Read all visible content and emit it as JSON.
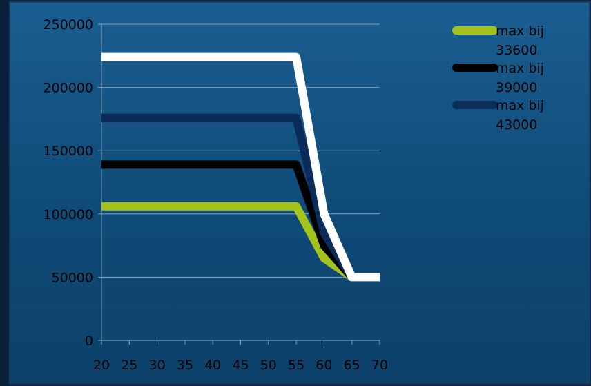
{
  "colors": {
    "plot_background": "#0f4c79",
    "gridline": "#8aa3b8",
    "text": "#000000"
  },
  "chart_data": {
    "type": "line",
    "title": "",
    "xlabel": "",
    "ylabel": "",
    "x": [
      20,
      25,
      30,
      35,
      40,
      45,
      50,
      55,
      60,
      65,
      70
    ],
    "xlim": [
      20,
      70
    ],
    "ylim": [
      0,
      250000
    ],
    "y_ticks": [
      "0",
      "50000",
      "100000",
      "150000",
      "200000",
      "250000"
    ],
    "x_ticks": [
      "20",
      "25",
      "30",
      "35",
      "40",
      "45",
      "50",
      "55",
      "60",
      "65",
      "70"
    ],
    "grid": "horizontal",
    "legend_position": "top-right",
    "series": [
      {
        "name": "max bij 33600",
        "color": "#a4c41d",
        "values": [
          106000,
          106000,
          106000,
          106000,
          106000,
          106000,
          106000,
          106000,
          65000,
          50000,
          50000
        ],
        "in_legend": true
      },
      {
        "name": "max bij 39000",
        "color": "#000000",
        "values": [
          139000,
          139000,
          139000,
          139000,
          139000,
          139000,
          139000,
          139000,
          75000,
          50000,
          50000
        ],
        "in_legend": true
      },
      {
        "name": "max bij 43000",
        "color": "#0b2b5b",
        "values": [
          176000,
          176000,
          176000,
          176000,
          176000,
          176000,
          176000,
          176000,
          85000,
          50000,
          50000
        ],
        "in_legend": true
      },
      {
        "name": "",
        "color": "#ffffff",
        "values": [
          224000,
          224000,
          224000,
          224000,
          224000,
          224000,
          224000,
          224000,
          100000,
          50000,
          50000
        ],
        "in_legend": false
      }
    ]
  }
}
